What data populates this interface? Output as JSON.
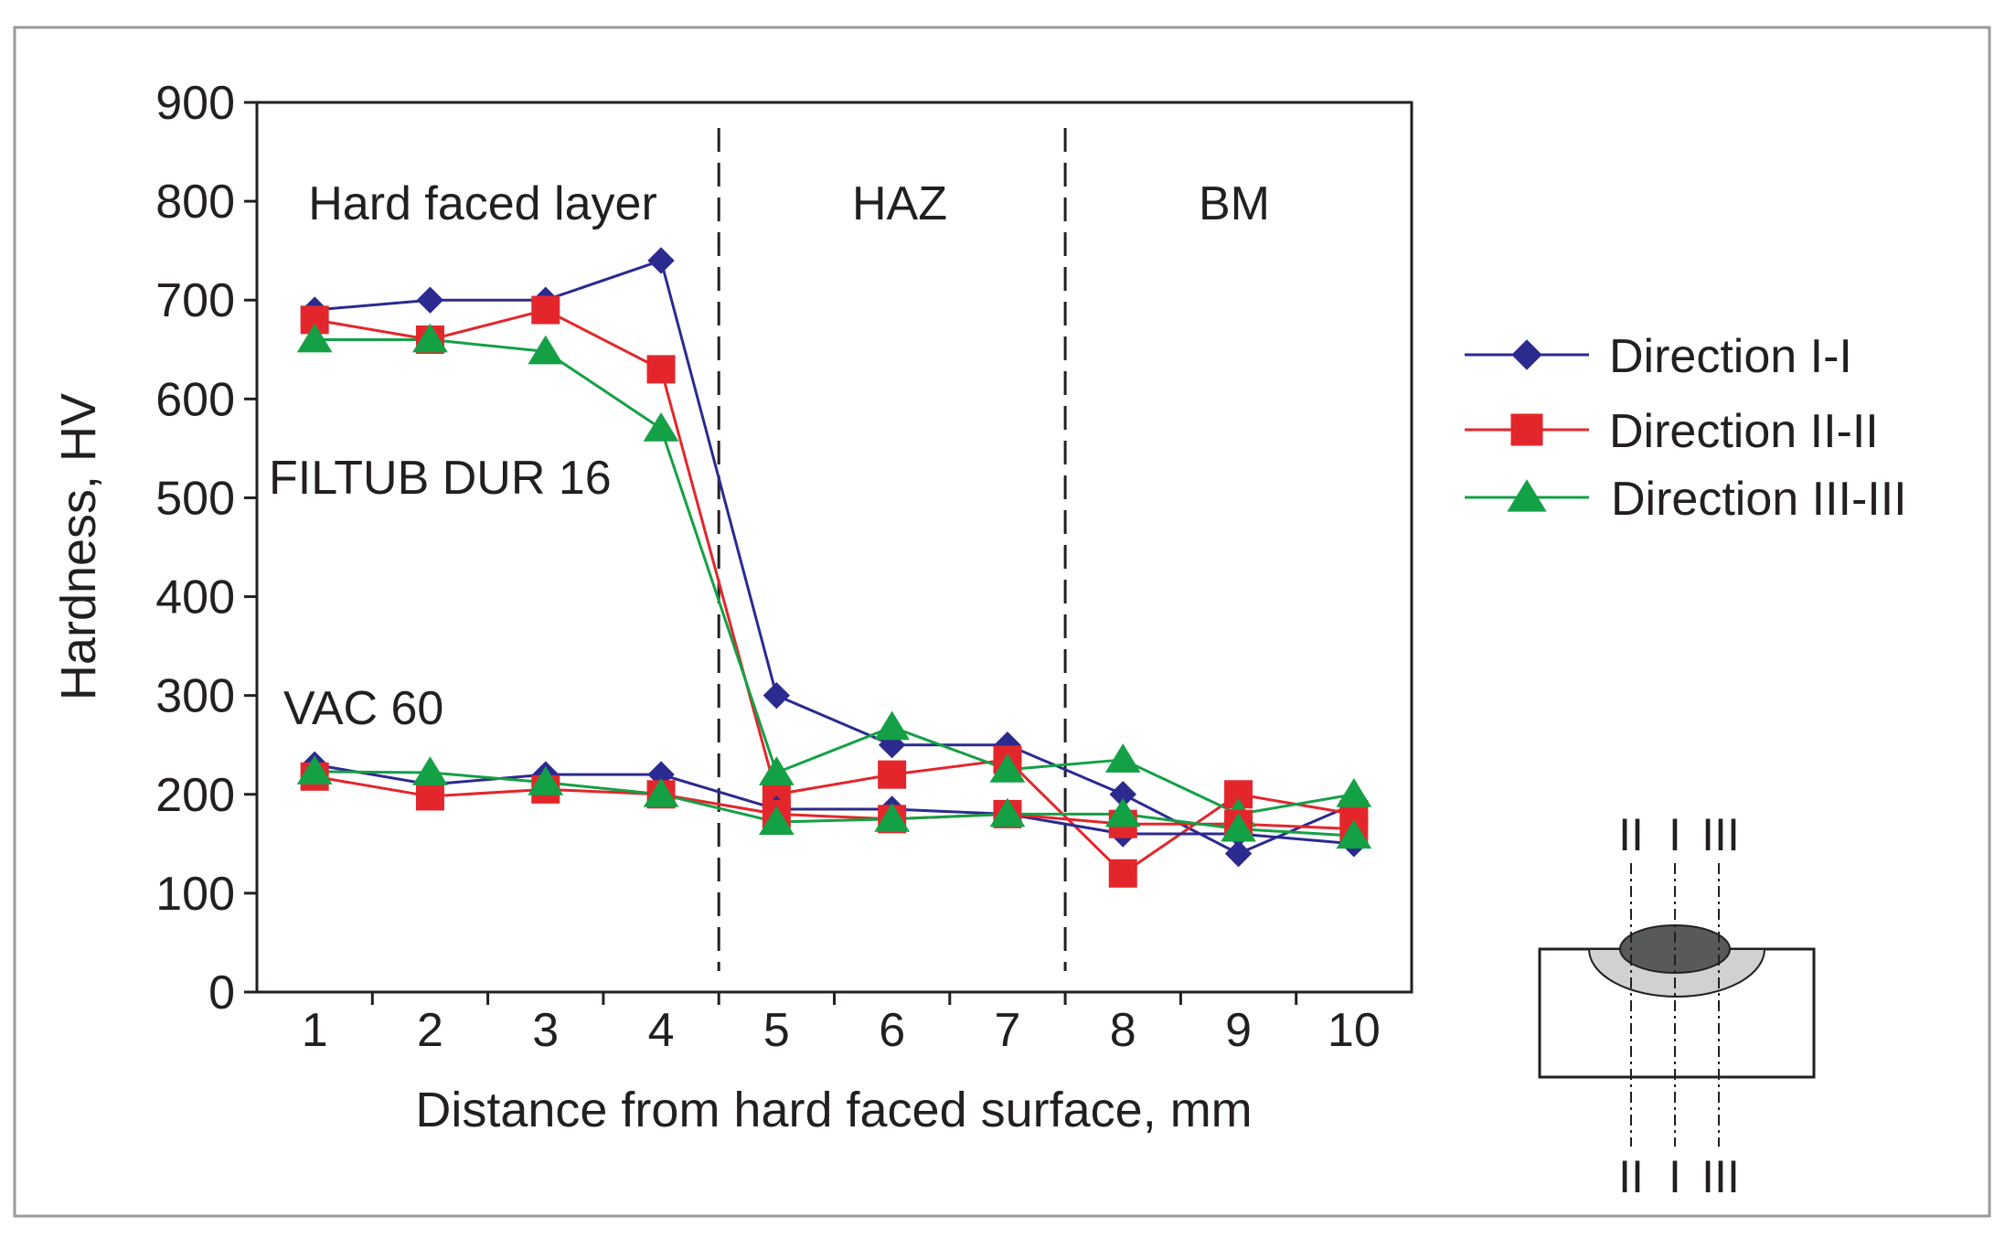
{
  "chart_data": {
    "type": "line",
    "title": "",
    "xlabel": "Distance from hard faced surface, mm",
    "ylabel": "Hardness, HV",
    "xlim": [
      0.5,
      10.5
    ],
    "ylim": [
      0,
      900
    ],
    "x": [
      1,
      2,
      3,
      4,
      5,
      6,
      7,
      8,
      9,
      10
    ],
    "xticks": [
      "1",
      "2",
      "3",
      "4",
      "5",
      "6",
      "7",
      "8",
      "9",
      "10"
    ],
    "yticks": [
      "0",
      "100",
      "200",
      "300",
      "400",
      "500",
      "600",
      "700",
      "800",
      "900"
    ],
    "grid": false,
    "legend_position": "right",
    "region_boundaries_x": [
      4.5,
      7.5
    ],
    "regions": [
      {
        "label": "Hard faced layer",
        "x_center": 2.5
      },
      {
        "label": "HAZ",
        "x_center": 6.0
      },
      {
        "label": "BM",
        "x_center": 8.9
      }
    ],
    "annotations": [
      {
        "text": "FILTUB DUR 16",
        "x": 0.6,
        "y": 520
      },
      {
        "text": "VAC 60",
        "x": 0.75,
        "y": 285
      }
    ],
    "colors": {
      "direction_1": "#2b2a8f",
      "direction_2": "#e3262b",
      "direction_3": "#14a045"
    },
    "series": [
      {
        "name": "Direction I-I",
        "group": "FILTUB DUR 16",
        "marker": "diamond",
        "color_key": "direction_1",
        "values": [
          690,
          700,
          700,
          740,
          300,
          250,
          250,
          200,
          140,
          190
        ]
      },
      {
        "name": "Direction II-II",
        "group": "FILTUB DUR 16",
        "marker": "square",
        "color_key": "direction_2",
        "values": [
          680,
          660,
          690,
          630,
          200,
          220,
          235,
          120,
          200,
          180
        ]
      },
      {
        "name": "Direction III-III",
        "group": "FILTUB DUR 16",
        "marker": "triangle",
        "color_key": "direction_3",
        "values": [
          660,
          660,
          648,
          570,
          222,
          268,
          225,
          235,
          180,
          200
        ]
      },
      {
        "name": "Direction I-I",
        "group": "VAC 60",
        "marker": "diamond",
        "color_key": "direction_1",
        "values": [
          230,
          210,
          220,
          220,
          185,
          185,
          180,
          160,
          160,
          150
        ]
      },
      {
        "name": "Direction II-II",
        "group": "VAC 60",
        "marker": "square",
        "color_key": "direction_2",
        "values": [
          218,
          198,
          205,
          200,
          180,
          175,
          180,
          170,
          170,
          165
        ]
      },
      {
        "name": "Direction III-III",
        "group": "VAC 60",
        "marker": "triangle",
        "color_key": "direction_3",
        "values": [
          223,
          222,
          212,
          200,
          172,
          175,
          180,
          180,
          165,
          158
        ]
      }
    ],
    "legend": [
      {
        "label": "Direction I-I",
        "marker": "diamond",
        "color_key": "direction_1"
      },
      {
        "label": "Direction II-II",
        "marker": "square",
        "color_key": "direction_2"
      },
      {
        "label": "Direction III-III",
        "marker": "triangle",
        "color_key": "direction_3"
      }
    ],
    "schematic": {
      "top_labels": [
        "II",
        "I",
        "III"
      ],
      "bottom_labels": [
        "II",
        "I",
        "III"
      ]
    }
  }
}
